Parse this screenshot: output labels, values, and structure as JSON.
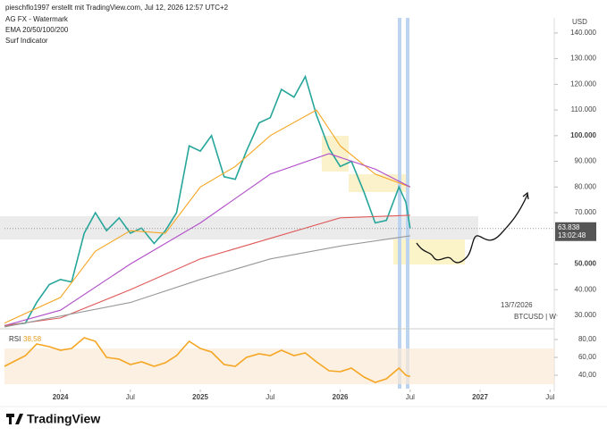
{
  "header": {
    "credit": "pieschflo1997 erstellt mit TradingView.com, Jul 12, 2026 12:57 UTC+2",
    "lines": [
      "AG FX - Watermark",
      "EMA 20/50/100/200",
      "Surf Indicator"
    ]
  },
  "footer": {
    "logo": "TradingView"
  },
  "chart_data": [
    {
      "type": "line",
      "currency": "USD",
      "symbol": "BTCUSD | W",
      "date": "13/7/2026",
      "last_price": {
        "value": 63838,
        "label": "63.838"
      },
      "countdown": "13:02:48",
      "xlim": [
        2023.6,
        2027.53
      ],
      "ylim": [
        25475,
        142400
      ],
      "yticks": [
        {
          "value": 30000,
          "label": "30.000"
        },
        {
          "value": 40000,
          "label": "40.000"
        },
        {
          "value": 50000,
          "label": "50.000"
        },
        {
          "value": 70000,
          "label": "70.000"
        },
        {
          "value": 80000,
          "label": "80.000"
        },
        {
          "value": 90000,
          "label": "90.000"
        },
        {
          "value": 100000,
          "label": "100.000"
        },
        {
          "value": 110000,
          "label": "110.000"
        },
        {
          "value": 120000,
          "label": "120.000"
        },
        {
          "value": 130000,
          "label": "130.000"
        },
        {
          "value": 140000,
          "label": "140.000"
        }
      ],
      "series": [
        {
          "color": "#26a69a",
          "x": [
            2023.6,
            2023.75,
            2023.83,
            2023.92,
            2024.0,
            2024.08,
            2024.17,
            2024.25,
            2024.33,
            2024.42,
            2024.5,
            2024.58,
            2024.67,
            2024.75,
            2024.83,
            2024.92,
            2025.0,
            2025.08,
            2025.17,
            2025.25,
            2025.33,
            2025.42,
            2025.5,
            2025.58,
            2025.67,
            2025.75,
            2025.83,
            2025.92,
            2026.0,
            2026.08,
            2026.17,
            2026.25,
            2026.33,
            2026.42,
            2026.47,
            2026.5
          ],
          "values": [
            26000,
            27000,
            35000,
            42000,
            44000,
            43000,
            62000,
            70000,
            63000,
            68000,
            62000,
            64000,
            58000,
            63000,
            70000,
            96000,
            94000,
            100000,
            84000,
            83000,
            94000,
            105000,
            107000,
            118000,
            115000,
            123000,
            108000,
            95000,
            88000,
            90000,
            78000,
            66000,
            67000,
            80000,
            74000,
            63838
          ]
        },
        {
          "color": "#f5a623",
          "x": [
            2023.6,
            2024.0,
            2024.25,
            2024.5,
            2024.75,
            2025.0,
            2025.25,
            2025.5,
            2025.83,
            2026.0,
            2026.25,
            2026.5
          ],
          "values": [
            27000,
            37000,
            55000,
            63000,
            62000,
            80000,
            88000,
            100000,
            110000,
            96000,
            85000,
            80000
          ]
        },
        {
          "color": "#b04cc8",
          "x": [
            2023.6,
            2024.0,
            2024.5,
            2025.0,
            2025.5,
            2025.92,
            2026.25,
            2026.5
          ],
          "values": [
            26000,
            32000,
            50000,
            66000,
            85000,
            93000,
            87000,
            80000
          ]
        },
        {
          "color": "#e05a5a",
          "x": [
            2023.6,
            2024.0,
            2024.5,
            2025.0,
            2025.5,
            2026.0,
            2026.5
          ],
          "values": [
            26000,
            29000,
            40000,
            52000,
            60000,
            68000,
            69000
          ]
        },
        {
          "color": "#999999",
          "x": [
            2023.6,
            2024.5,
            2025.0,
            2025.5,
            2026.0,
            2026.5
          ],
          "values": [
            25500,
            35000,
            44000,
            52000,
            57000,
            61000
          ]
        }
      ]
    },
    {
      "type": "line",
      "title": "RSI",
      "current": "38,58",
      "xlim": [
        2023.6,
        2027.53
      ],
      "ylim": [
        25,
        88
      ],
      "band": [
        30,
        70
      ],
      "yticks": [
        {
          "value": 40,
          "label": "40,00"
        },
        {
          "value": 60,
          "label": "60,00"
        },
        {
          "value": 80,
          "label": "80,00"
        }
      ],
      "xticks": [
        {
          "value": 2024,
          "label": "2024"
        },
        {
          "value": 2024.5,
          "label": "Jul"
        },
        {
          "value": 2025,
          "label": "2025"
        },
        {
          "value": 2025.5,
          "label": "Jul"
        },
        {
          "value": 2026,
          "label": "2026"
        },
        {
          "value": 2026.5,
          "label": "Jul"
        },
        {
          "value": 2027,
          "label": "2027"
        },
        {
          "value": 2027.5,
          "label": "Jul"
        }
      ],
      "series": [
        {
          "color": "#f5a623",
          "x": [
            2023.6,
            2023.75,
            2023.83,
            2023.92,
            2024.0,
            2024.08,
            2024.17,
            2024.25,
            2024.33,
            2024.42,
            2024.5,
            2024.58,
            2024.67,
            2024.75,
            2024.83,
            2024.92,
            2025.0,
            2025.08,
            2025.17,
            2025.25,
            2025.33,
            2025.42,
            2025.5,
            2025.58,
            2025.67,
            2025.75,
            2025.83,
            2025.92,
            2026.0,
            2026.08,
            2026.17,
            2026.25,
            2026.33,
            2026.42,
            2026.47,
            2026.5
          ],
          "values": [
            50,
            62,
            75,
            72,
            68,
            70,
            82,
            78,
            60,
            58,
            52,
            55,
            50,
            54,
            62,
            78,
            70,
            66,
            52,
            50,
            60,
            64,
            62,
            68,
            62,
            65,
            55,
            45,
            44,
            48,
            38,
            32,
            36,
            48,
            40,
            38.58
          ]
        }
      ]
    }
  ]
}
